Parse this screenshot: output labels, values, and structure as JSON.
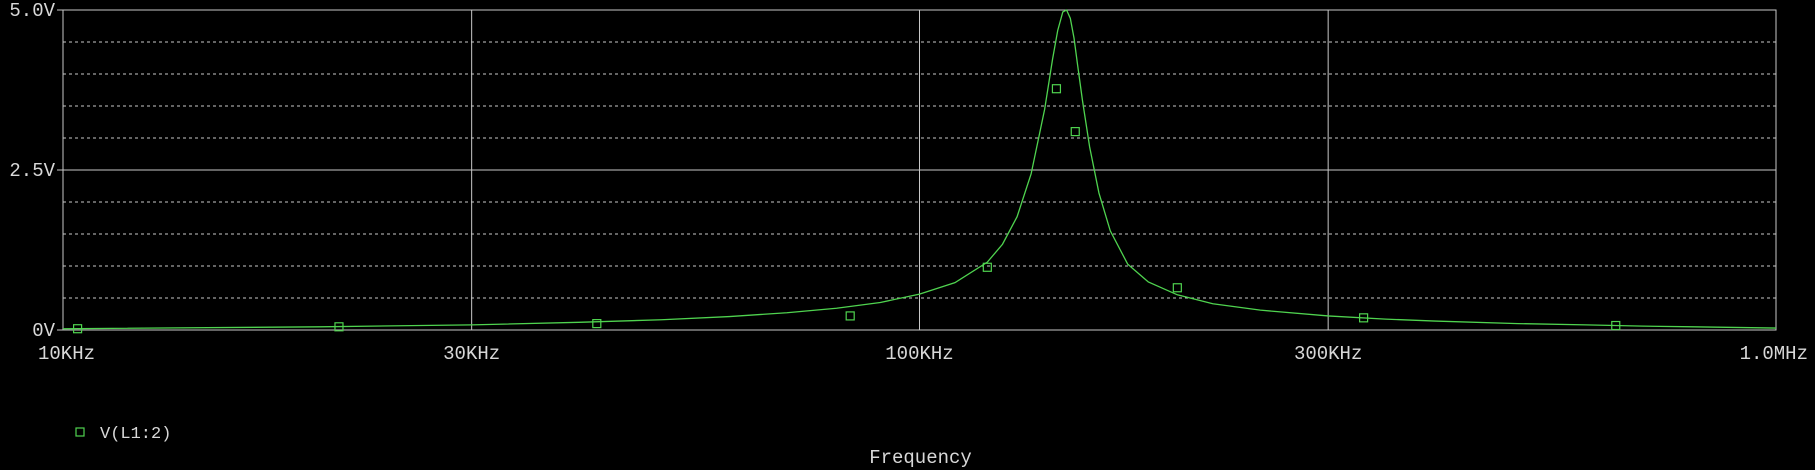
{
  "chart_data": {
    "type": "line",
    "title": "",
    "xlabel": "Frequency",
    "ylabel": "",
    "x_scale": "log",
    "xlim": [
      10000,
      1000000
    ],
    "ylim": [
      0,
      5
    ],
    "x_ticks": [
      {
        "value": 10000,
        "label": "10KHz"
      },
      {
        "value": 30000,
        "label": "30KHz"
      },
      {
        "value": 100000,
        "label": "100KHz"
      },
      {
        "value": 300000,
        "label": "300KHz"
      },
      {
        "value": 1000000,
        "label": "1.0MHz"
      }
    ],
    "y_ticks": [
      {
        "value": 0,
        "label": "0V"
      },
      {
        "value": 2.5,
        "label": "2.5V"
      },
      {
        "value": 5.0,
        "label": "5.0V"
      }
    ],
    "y_minor_step": 0.5,
    "grid": true,
    "legend": "bottom-left",
    "colors": {
      "background": "#000000",
      "grid": "#c8c8c8",
      "trace": "#4fd34f",
      "text": "#d8d8d8"
    },
    "series": [
      {
        "name": "V(L1:2)",
        "marker": "square",
        "x": [
          10000,
          20000,
          30000,
          40000,
          50000,
          60000,
          70000,
          80000,
          90000,
          100000,
          110000,
          120000,
          125000,
          130000,
          135000,
          140000,
          143000,
          145000,
          147000,
          148500,
          150000,
          151500,
          153000,
          155000,
          158000,
          162000,
          167000,
          175000,
          185000,
          200000,
          220000,
          250000,
          300000,
          350000,
          400000,
          500000,
          600000,
          700000,
          800000,
          1000000
        ],
        "values": [
          0.02,
          0.05,
          0.08,
          0.12,
          0.16,
          0.21,
          0.27,
          0.34,
          0.43,
          0.56,
          0.74,
          1.06,
          1.34,
          1.77,
          2.44,
          3.45,
          4.23,
          4.68,
          4.97,
          5.0,
          4.87,
          4.56,
          4.13,
          3.58,
          2.86,
          2.14,
          1.55,
          1.03,
          0.75,
          0.55,
          0.41,
          0.31,
          0.22,
          0.17,
          0.14,
          0.1,
          0.08,
          0.06,
          0.05,
          0.03
        ],
        "marker_points": [
          {
            "x": 10400,
            "y": 0.02
          },
          {
            "x": 21000,
            "y": 0.05
          },
          {
            "x": 42000,
            "y": 0.1
          },
          {
            "x": 83000,
            "y": 0.22
          },
          {
            "x": 120000,
            "y": 0.98
          },
          {
            "x": 144500,
            "y": 3.77
          },
          {
            "x": 152000,
            "y": 3.1
          },
          {
            "x": 200000,
            "y": 0.66
          },
          {
            "x": 330000,
            "y": 0.19
          },
          {
            "x": 650000,
            "y": 0.07
          }
        ]
      }
    ]
  }
}
